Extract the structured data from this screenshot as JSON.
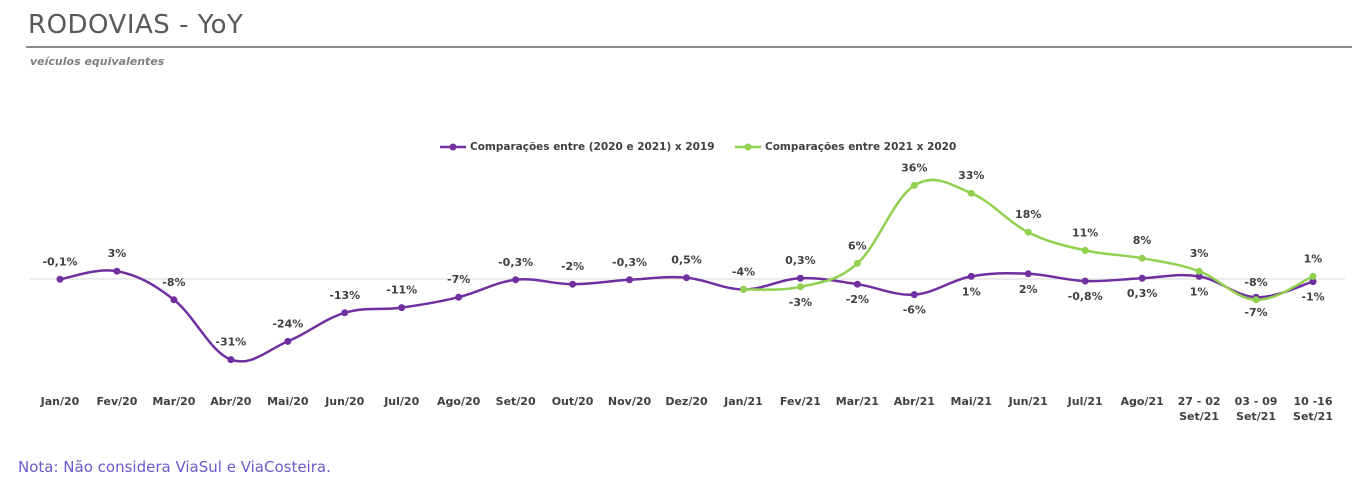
{
  "chart_data": {
    "type": "line",
    "title": "RODOVIAS - YoY",
    "subtitle": "veículos equivalentes",
    "note": "Nota: Não considera ViaSul e ViaCosteira.",
    "categories": [
      "Jan/20",
      "Fev/20",
      "Mar/20",
      "Abr/20",
      "Mai/20",
      "Jun/20",
      "Jul/20",
      "Ago/20",
      "Set/20",
      "Out/20",
      "Nov/20",
      "Dez/20",
      "Jan/21",
      "Fev/21",
      "Mar/21",
      "Abr/21",
      "Mai/21",
      "Jun/21",
      "Jul/21",
      "Ago/21",
      "27 - 02\nSet/21",
      "03 - 09\nSet/21",
      "10 -16\nSet/21"
    ],
    "ylim": [
      -35,
      40
    ],
    "series": [
      {
        "name": "Comparações entre (2020 e 2021) x 2019",
        "color": "#7030a0",
        "values": [
          -0.1,
          3,
          -8,
          -31,
          -24,
          -13,
          -11,
          -7,
          -0.3,
          -2,
          -0.3,
          0.5,
          -4,
          0.3,
          -2,
          -6,
          1,
          2,
          -0.8,
          0.3,
          1,
          -7,
          -1
        ],
        "value_labels": [
          "-0,1%",
          "3%",
          "-8%",
          "-31%",
          "-24%",
          "-13%",
          "-11%",
          "-7%",
          "-0,3%",
          "-2%",
          "-0,3%",
          "0,5%",
          "-4%",
          "0,3%",
          "-2%",
          "-6%",
          "1%",
          "2%",
          "-0,8%",
          "0,3%",
          "1%",
          "-7%",
          "-1%"
        ]
      },
      {
        "name": "Comparações entre 2021 x 2020",
        "color": "#92d050",
        "values": [
          null,
          null,
          null,
          null,
          null,
          null,
          null,
          null,
          null,
          null,
          null,
          null,
          -4,
          -3,
          6,
          36,
          33,
          18,
          11,
          8,
          3,
          -8,
          1
        ],
        "value_labels": [
          null,
          null,
          null,
          null,
          null,
          null,
          null,
          null,
          null,
          null,
          null,
          null,
          null,
          "-3%",
          "6%",
          "36%",
          "33%",
          "18%",
          "11%",
          "8%",
          "3%",
          "-8%",
          "1%"
        ]
      }
    ],
    "legend": "top"
  }
}
